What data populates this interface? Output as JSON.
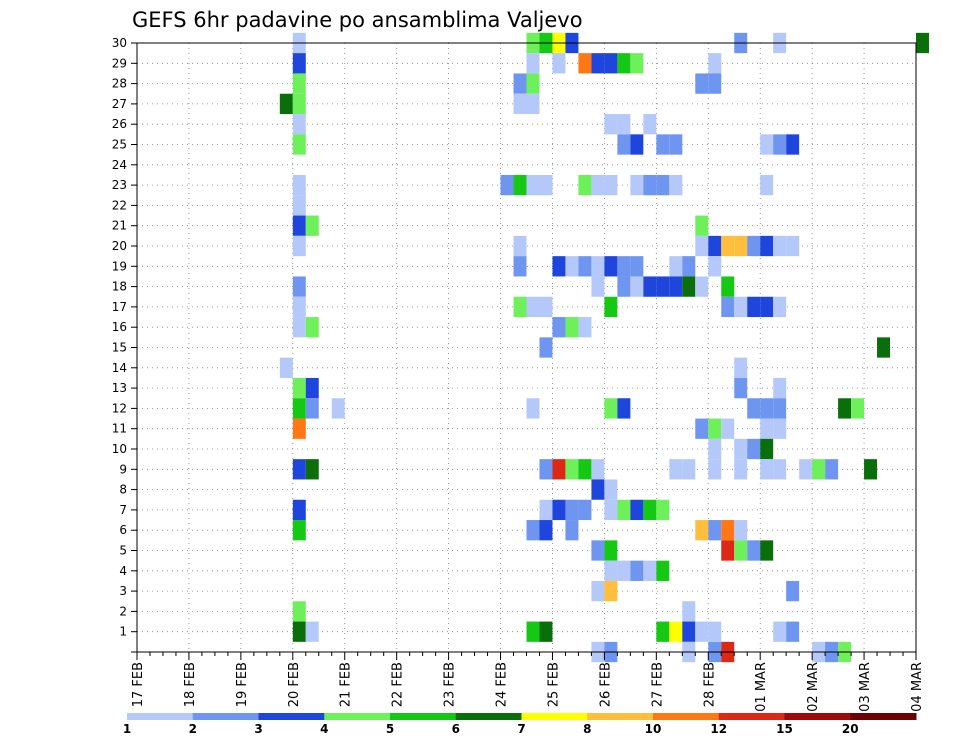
{
  "chart_data": {
    "type": "heatmap",
    "title": "GEFS 6hr padavine po ansamblima Valjevo",
    "x_tick_labels": [
      "17 FEB",
      "18 FEB",
      "19 FEB",
      "20 FEB",
      "21 FEB",
      "22 FEB",
      "23 FEB",
      "24 FEB",
      "25 FEB",
      "26 FEB",
      "27 FEB",
      "28 FEB",
      "01 MAR",
      "02 MAR",
      "03 MAR",
      "04 MAR"
    ],
    "x_range_days": [
      0,
      15
    ],
    "x_step_hours": 6,
    "y_tick_labels": [
      "1",
      "2",
      "3",
      "4",
      "5",
      "6",
      "7",
      "8",
      "9",
      "10",
      "11",
      "12",
      "13",
      "14",
      "15",
      "16",
      "17",
      "18",
      "19",
      "20",
      "21",
      "22",
      "23",
      "24",
      "25",
      "26",
      "27",
      "28",
      "29",
      "30"
    ],
    "y_range": [
      0,
      30
    ],
    "grid": true,
    "legend": {
      "placement": "bottom",
      "boundaries": [
        "1",
        "2",
        "3",
        "4",
        "5",
        "6",
        "7",
        "8",
        "10",
        "12",
        "15",
        "20"
      ],
      "colors": [
        "#b4c8fa",
        "#6e96f0",
        "#1e46dc",
        "#6ef05a",
        "#14c814",
        "#0a6e0a",
        "#ffff00",
        "#ffbe3c",
        "#ff7814",
        "#dc2814",
        "#a00a0a",
        "#6e0000"
      ]
    },
    "cells_format": "[member, day_offset_from_17_FEB, level_index]",
    "cells": [
      [
        30,
        3.0,
        0
      ],
      [
        30,
        7.5,
        3
      ],
      [
        30,
        7.75,
        4
      ],
      [
        30,
        8.0,
        6
      ],
      [
        30,
        8.25,
        2
      ],
      [
        30,
        11.5,
        1
      ],
      [
        30,
        12.25,
        0
      ],
      [
        30,
        15.0,
        5
      ],
      [
        29,
        3.0,
        2
      ],
      [
        29,
        7.5,
        0
      ],
      [
        29,
        8.0,
        0
      ],
      [
        29,
        8.5,
        8
      ],
      [
        29,
        8.75,
        2
      ],
      [
        29,
        9.0,
        2
      ],
      [
        29,
        9.25,
        4
      ],
      [
        29,
        9.5,
        3
      ],
      [
        29,
        11.0,
        0
      ],
      [
        28,
        3.0,
        3
      ],
      [
        28,
        7.25,
        1
      ],
      [
        28,
        7.5,
        3
      ],
      [
        28,
        10.75,
        1
      ],
      [
        28,
        11.0,
        1
      ],
      [
        27,
        2.75,
        5
      ],
      [
        27,
        3.0,
        3
      ],
      [
        27,
        7.25,
        0
      ],
      [
        27,
        7.5,
        0
      ],
      [
        26,
        3.0,
        0
      ],
      [
        26,
        9.0,
        0
      ],
      [
        26,
        9.25,
        0
      ],
      [
        26,
        9.75,
        0
      ],
      [
        25,
        3.0,
        3
      ],
      [
        25,
        9.25,
        1
      ],
      [
        25,
        9.5,
        2
      ],
      [
        25,
        10.0,
        1
      ],
      [
        25,
        10.25,
        1
      ],
      [
        25,
        12.0,
        0
      ],
      [
        25,
        12.25,
        1
      ],
      [
        25,
        12.5,
        2
      ],
      [
        23,
        3.0,
        0
      ],
      [
        23,
        7.0,
        1
      ],
      [
        23,
        7.25,
        4
      ],
      [
        23,
        7.5,
        0
      ],
      [
        23,
        7.75,
        0
      ],
      [
        23,
        8.5,
        3
      ],
      [
        23,
        8.75,
        0
      ],
      [
        23,
        9.0,
        0
      ],
      [
        23,
        9.5,
        0
      ],
      [
        23,
        9.75,
        1
      ],
      [
        23,
        10.0,
        1
      ],
      [
        23,
        10.25,
        0
      ],
      [
        23,
        12.0,
        0
      ],
      [
        22,
        3.0,
        0
      ],
      [
        21,
        3.0,
        2
      ],
      [
        21,
        3.25,
        3
      ],
      [
        21,
        10.75,
        3
      ],
      [
        20,
        3.0,
        0
      ],
      [
        20,
        7.25,
        0
      ],
      [
        20,
        10.75,
        0
      ],
      [
        20,
        11.0,
        2
      ],
      [
        20,
        11.25,
        7
      ],
      [
        20,
        11.5,
        7
      ],
      [
        20,
        11.75,
        1
      ],
      [
        20,
        12.0,
        2
      ],
      [
        20,
        12.25,
        0
      ],
      [
        20,
        12.5,
        0
      ],
      [
        19,
        7.25,
        1
      ],
      [
        19,
        8.0,
        2
      ],
      [
        19,
        8.25,
        0
      ],
      [
        19,
        8.5,
        1
      ],
      [
        19,
        8.75,
        0
      ],
      [
        19,
        9.0,
        2
      ],
      [
        19,
        9.25,
        1
      ],
      [
        19,
        9.5,
        1
      ],
      [
        19,
        10.25,
        0
      ],
      [
        19,
        10.5,
        1
      ],
      [
        19,
        11.0,
        0
      ],
      [
        18,
        3.0,
        1
      ],
      [
        18,
        8.75,
        0
      ],
      [
        18,
        9.25,
        1
      ],
      [
        18,
        9.5,
        0
      ],
      [
        18,
        9.75,
        2
      ],
      [
        18,
        10.0,
        2
      ],
      [
        18,
        10.25,
        2
      ],
      [
        18,
        10.5,
        5
      ],
      [
        18,
        10.75,
        0
      ],
      [
        18,
        11.25,
        4
      ],
      [
        17,
        3.0,
        0
      ],
      [
        17,
        7.25,
        3
      ],
      [
        17,
        7.5,
        0
      ],
      [
        17,
        7.75,
        0
      ],
      [
        17,
        9.0,
        4
      ],
      [
        17,
        11.25,
        1
      ],
      [
        17,
        11.5,
        0
      ],
      [
        17,
        11.75,
        2
      ],
      [
        17,
        12.0,
        2
      ],
      [
        17,
        12.25,
        0
      ],
      [
        16,
        3.0,
        0
      ],
      [
        16,
        3.25,
        3
      ],
      [
        16,
        8.0,
        1
      ],
      [
        16,
        8.25,
        3
      ],
      [
        16,
        8.5,
        0
      ],
      [
        15,
        7.75,
        1
      ],
      [
        15,
        14.25,
        5
      ],
      [
        14,
        2.75,
        0
      ],
      [
        14,
        11.5,
        0
      ],
      [
        13,
        3.0,
        3
      ],
      [
        13,
        3.25,
        2
      ],
      [
        13,
        11.5,
        1
      ],
      [
        13,
        12.25,
        0
      ],
      [
        12,
        3.0,
        4
      ],
      [
        12,
        3.25,
        1
      ],
      [
        12,
        3.75,
        0
      ],
      [
        12,
        7.5,
        0
      ],
      [
        12,
        9.0,
        3
      ],
      [
        12,
        9.25,
        2
      ],
      [
        12,
        11.75,
        1
      ],
      [
        12,
        12.0,
        1
      ],
      [
        12,
        12.25,
        1
      ],
      [
        12,
        13.5,
        5
      ],
      [
        12,
        13.75,
        3
      ],
      [
        11,
        3.0,
        8
      ],
      [
        11,
        10.75,
        1
      ],
      [
        11,
        11.0,
        3
      ],
      [
        11,
        11.25,
        0
      ],
      [
        11,
        12.0,
        0
      ],
      [
        11,
        12.25,
        0
      ],
      [
        10,
        11.0,
        0
      ],
      [
        10,
        11.5,
        0
      ],
      [
        10,
        11.75,
        1
      ],
      [
        10,
        12.0,
        5
      ],
      [
        9,
        3.0,
        2
      ],
      [
        9,
        3.25,
        5
      ],
      [
        9,
        7.75,
        1
      ],
      [
        9,
        8.0,
        9
      ],
      [
        9,
        8.25,
        3
      ],
      [
        9,
        8.5,
        4
      ],
      [
        9,
        8.75,
        0
      ],
      [
        9,
        10.25,
        0
      ],
      [
        9,
        10.5,
        0
      ],
      [
        9,
        11.0,
        0
      ],
      [
        9,
        11.5,
        0
      ],
      [
        9,
        12.0,
        0
      ],
      [
        9,
        12.25,
        0
      ],
      [
        9,
        12.75,
        0
      ],
      [
        9,
        13.0,
        3
      ],
      [
        9,
        13.25,
        1
      ],
      [
        9,
        14.0,
        5
      ],
      [
        8,
        8.75,
        2
      ],
      [
        8,
        9.0,
        0
      ],
      [
        7,
        3.0,
        2
      ],
      [
        7,
        7.75,
        0
      ],
      [
        7,
        8.0,
        2
      ],
      [
        7,
        8.25,
        1
      ],
      [
        7,
        8.5,
        1
      ],
      [
        7,
        9.0,
        0
      ],
      [
        7,
        9.25,
        3
      ],
      [
        7,
        9.5,
        2
      ],
      [
        7,
        9.75,
        4
      ],
      [
        7,
        10.0,
        3
      ],
      [
        6,
        3.0,
        4
      ],
      [
        6,
        7.5,
        1
      ],
      [
        6,
        7.75,
        2
      ],
      [
        6,
        8.25,
        1
      ],
      [
        6,
        10.75,
        7
      ],
      [
        6,
        11.0,
        1
      ],
      [
        6,
        11.25,
        8
      ],
      [
        6,
        11.5,
        0
      ],
      [
        5,
        8.75,
        1
      ],
      [
        5,
        9.0,
        4
      ],
      [
        5,
        11.25,
        9
      ],
      [
        5,
        11.5,
        3
      ],
      [
        5,
        11.75,
        1
      ],
      [
        5,
        12.0,
        5
      ],
      [
        4,
        9.0,
        0
      ],
      [
        4,
        9.25,
        0
      ],
      [
        4,
        9.5,
        1
      ],
      [
        4,
        9.75,
        0
      ],
      [
        4,
        10.0,
        4
      ],
      [
        3,
        8.75,
        0
      ],
      [
        3,
        9.0,
        7
      ],
      [
        3,
        12.5,
        1
      ],
      [
        2,
        3.0,
        3
      ],
      [
        2,
        10.5,
        0
      ],
      [
        1,
        3.0,
        5
      ],
      [
        1,
        3.25,
        0
      ],
      [
        1,
        7.5,
        4
      ],
      [
        1,
        7.75,
        5
      ],
      [
        1,
        10.0,
        4
      ],
      [
        1,
        10.25,
        6
      ],
      [
        1,
        10.5,
        2
      ],
      [
        1,
        10.75,
        0
      ],
      [
        1,
        11.0,
        0
      ],
      [
        1,
        12.25,
        0
      ],
      [
        1,
        12.5,
        1
      ],
      [
        0,
        8.75,
        0
      ],
      [
        0,
        9.0,
        1
      ],
      [
        0,
        10.5,
        0
      ],
      [
        0,
        11.0,
        1
      ],
      [
        0,
        11.25,
        9
      ],
      [
        0,
        13.0,
        0
      ],
      [
        0,
        13.25,
        1
      ],
      [
        0,
        13.5,
        3
      ]
    ]
  }
}
